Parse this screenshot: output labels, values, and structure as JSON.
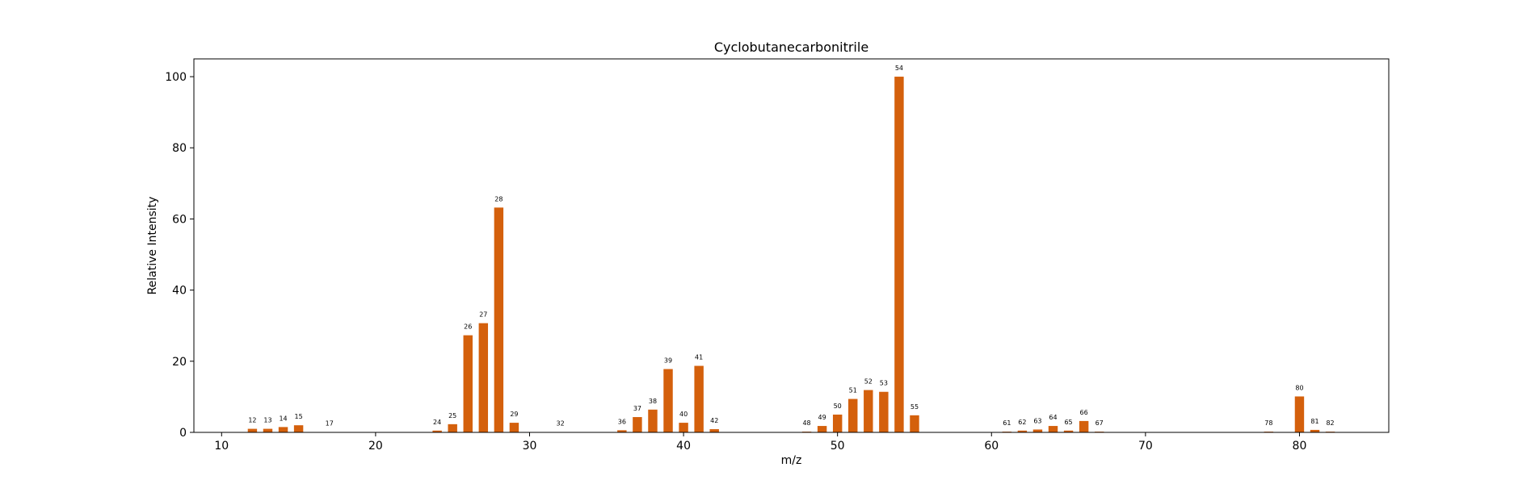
{
  "chart_data": {
    "type": "bar",
    "title": "Cyclobutanecarbonitrile",
    "xlabel": "m/z",
    "ylabel": "Relative Intensity",
    "xlim": [
      8.2,
      85.8
    ],
    "ylim": [
      0,
      105
    ],
    "xticks": [
      10,
      20,
      30,
      40,
      50,
      60,
      70,
      80
    ],
    "yticks": [
      0,
      20,
      40,
      60,
      80,
      100
    ],
    "grid": false,
    "bar_color": "#d4600c",
    "bar_width": 0.6,
    "x": [
      12,
      13,
      14,
      15,
      17,
      24,
      25,
      26,
      27,
      28,
      29,
      32,
      36,
      37,
      38,
      39,
      40,
      41,
      42,
      48,
      49,
      50,
      51,
      52,
      53,
      54,
      55,
      61,
      62,
      63,
      64,
      65,
      66,
      67,
      78,
      80,
      81,
      82
    ],
    "values": [
      1.0,
      1.0,
      1.5,
      2.0,
      0.1,
      0.5,
      2.3,
      27.3,
      30.7,
      63.2,
      2.7,
      0.1,
      0.6,
      4.3,
      6.4,
      17.8,
      2.7,
      18.7,
      0.9,
      0.2,
      1.8,
      5.0,
      9.4,
      11.9,
      11.4,
      100.0,
      4.8,
      0.2,
      0.5,
      0.8,
      1.8,
      0.5,
      3.2,
      0.2,
      0.2,
      10.1,
      0.7,
      0.2
    ],
    "labels": [
      "12",
      "13",
      "14",
      "15",
      "17",
      "24",
      "25",
      "26",
      "27",
      "28",
      "29",
      "32",
      "36",
      "37",
      "38",
      "39",
      "40",
      "41",
      "42",
      "48",
      "49",
      "50",
      "51",
      "52",
      "53",
      "54",
      "55",
      "61",
      "62",
      "63",
      "64",
      "65",
      "66",
      "67",
      "78",
      "80",
      "81",
      "82"
    ]
  }
}
